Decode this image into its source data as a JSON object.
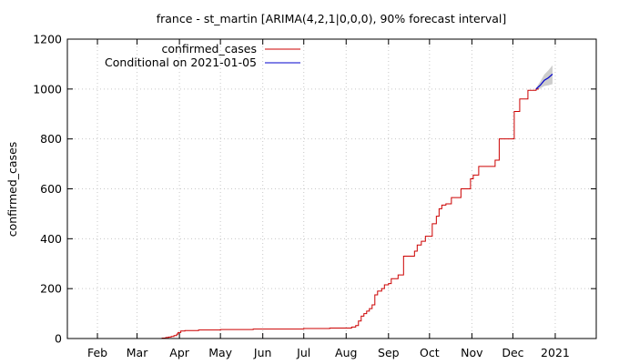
{
  "chart_data": {
    "type": "line",
    "title": "france - st_martin [ARIMA(4,2,1|0,0,0), 90% forecast interval]",
    "xlabel": "",
    "ylabel": "confirmed_cases",
    "xlim": [
      "2020-01-10",
      "2021-01-31"
    ],
    "ylim": [
      0,
      1200
    ],
    "y_ticks": [
      0,
      200,
      400,
      600,
      800,
      1000,
      1200
    ],
    "x_ticks": [
      {
        "label": "Feb",
        "date": "2020-02-01"
      },
      {
        "label": "Mar",
        "date": "2020-03-01"
      },
      {
        "label": "Apr",
        "date": "2020-04-01"
      },
      {
        "label": "May",
        "date": "2020-05-01"
      },
      {
        "label": "Jun",
        "date": "2020-06-01"
      },
      {
        "label": "Jul",
        "date": "2020-07-01"
      },
      {
        "label": "Aug",
        "date": "2020-08-01"
      },
      {
        "label": "Sep",
        "date": "2020-09-01"
      },
      {
        "label": "Oct",
        "date": "2020-10-01"
      },
      {
        "label": "Nov",
        "date": "2020-11-01"
      },
      {
        "label": "Dec",
        "date": "2020-12-01"
      },
      {
        "label": "2021",
        "date": "2021-01-01"
      }
    ],
    "grid": true,
    "legend_position": "top-left",
    "series": [
      {
        "name": "confirmed_cases",
        "color": "#cc0000",
        "step": true,
        "points": [
          [
            "2020-03-19",
            2
          ],
          [
            "2020-03-22",
            4
          ],
          [
            "2020-03-24",
            6
          ],
          [
            "2020-03-26",
            8
          ],
          [
            "2020-03-28",
            12
          ],
          [
            "2020-03-30",
            18
          ],
          [
            "2020-03-31",
            24
          ],
          [
            "2020-04-02",
            30
          ],
          [
            "2020-04-05",
            32
          ],
          [
            "2020-04-15",
            34
          ],
          [
            "2020-05-01",
            36
          ],
          [
            "2020-05-25",
            38
          ],
          [
            "2020-06-20",
            38
          ],
          [
            "2020-07-01",
            40
          ],
          [
            "2020-07-20",
            42
          ],
          [
            "2020-08-05",
            46
          ],
          [
            "2020-08-08",
            52
          ],
          [
            "2020-08-10",
            70
          ],
          [
            "2020-08-12",
            90
          ],
          [
            "2020-08-14",
            100
          ],
          [
            "2020-08-16",
            110
          ],
          [
            "2020-08-18",
            120
          ],
          [
            "2020-08-20",
            135
          ],
          [
            "2020-08-22",
            175
          ],
          [
            "2020-08-24",
            190
          ],
          [
            "2020-08-27",
            200
          ],
          [
            "2020-08-29",
            215
          ],
          [
            "2020-09-01",
            220
          ],
          [
            "2020-09-03",
            240
          ],
          [
            "2020-09-08",
            255
          ],
          [
            "2020-09-12",
            330
          ],
          [
            "2020-09-20",
            350
          ],
          [
            "2020-09-22",
            375
          ],
          [
            "2020-09-25",
            390
          ],
          [
            "2020-09-28",
            410
          ],
          [
            "2020-10-03",
            460
          ],
          [
            "2020-10-06",
            490
          ],
          [
            "2020-10-08",
            520
          ],
          [
            "2020-10-10",
            535
          ],
          [
            "2020-10-13",
            540
          ],
          [
            "2020-10-17",
            565
          ],
          [
            "2020-10-24",
            600
          ],
          [
            "2020-10-31",
            640
          ],
          [
            "2020-11-02",
            655
          ],
          [
            "2020-11-06",
            690
          ],
          [
            "2020-11-18",
            715
          ],
          [
            "2020-11-21",
            800
          ],
          [
            "2020-11-28",
            800
          ],
          [
            "2020-12-02",
            910
          ],
          [
            "2020-12-06",
            960
          ],
          [
            "2020-12-12",
            995
          ],
          [
            "2020-12-18",
            1000
          ]
        ]
      },
      {
        "name": "Conditional on 2021-01-05",
        "color": "#0000cc",
        "points": [
          [
            "2020-12-18",
            1000
          ],
          [
            "2020-12-21",
            1015
          ],
          [
            "2020-12-24",
            1035
          ],
          [
            "2020-12-27",
            1045
          ],
          [
            "2020-12-30",
            1060
          ]
        ],
        "band": [
          [
            "2020-12-18",
            995,
            1005
          ],
          [
            "2020-12-21",
            1002,
            1030
          ],
          [
            "2020-12-24",
            1012,
            1058
          ],
          [
            "2020-12-27",
            1015,
            1075
          ],
          [
            "2020-12-30",
            1020,
            1095
          ]
        ],
        "band_color": "#c8c8c8"
      }
    ]
  }
}
